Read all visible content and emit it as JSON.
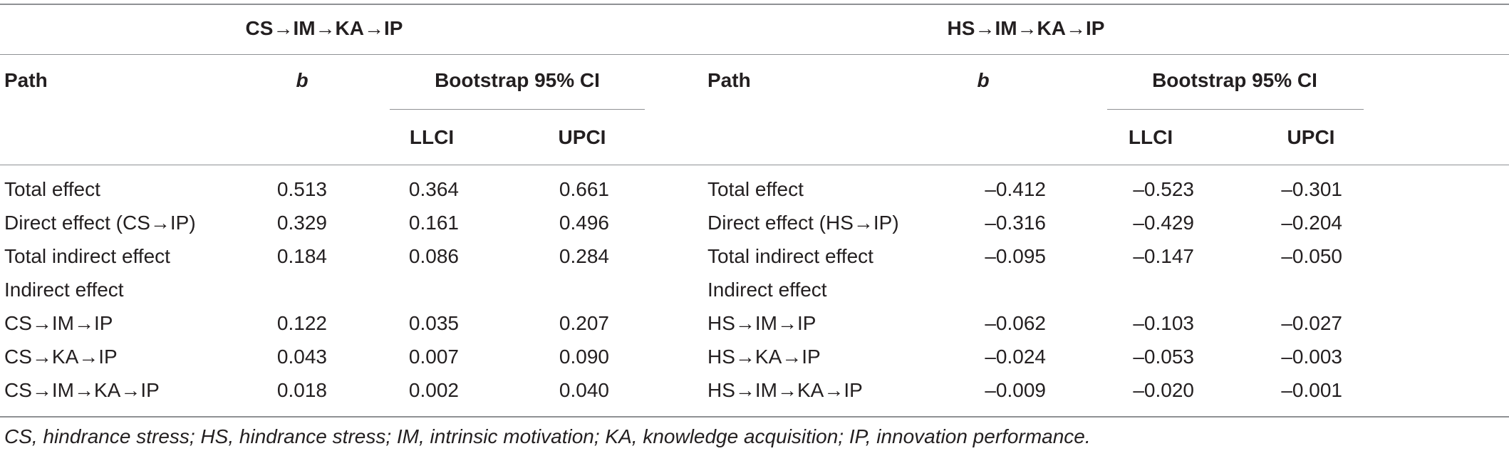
{
  "tables": [
    {
      "title": "CS→IM→KA→IP",
      "headers": {
        "path": "Path",
        "b": "b",
        "ci": "Bootstrap 95% CI",
        "llci": "LLCI",
        "upci": "UPCI"
      },
      "rows": [
        {
          "path": "Total effect",
          "b": "0.513",
          "llci": "0.364",
          "upci": "0.661"
        },
        {
          "path": "Direct effect (CS→IP)",
          "b": "0.329",
          "llci": "0.161",
          "upci": "0.496"
        },
        {
          "path": "Total indirect effect",
          "b": "0.184",
          "llci": "0.086",
          "upci": "0.284"
        },
        {
          "path": "Indirect effect",
          "b": "",
          "llci": "",
          "upci": ""
        },
        {
          "path": "CS→IM→IP",
          "b": "0.122",
          "llci": "0.035",
          "upci": "0.207"
        },
        {
          "path": "CS→KA→IP",
          "b": "0.043",
          "llci": "0.007",
          "upci": "0.090"
        },
        {
          "path": "CS→IM→KA→IP",
          "b": "0.018",
          "llci": "0.002",
          "upci": "0.040"
        }
      ]
    },
    {
      "title": "HS→IM→KA→IP",
      "headers": {
        "path": "Path",
        "b": "b",
        "ci": "Bootstrap 95% CI",
        "llci": "LLCI",
        "upci": "UPCI"
      },
      "rows": [
        {
          "path": "Total effect",
          "b": "–0.412",
          "llci": "–0.523",
          "upci": "–0.301"
        },
        {
          "path": "Direct effect (HS→IP)",
          "b": "–0.316",
          "llci": "–0.429",
          "upci": "–0.204"
        },
        {
          "path": "Total indirect effect",
          "b": "–0.095",
          "llci": "–0.147",
          "upci": "–0.050"
        },
        {
          "path": "Indirect effect",
          "b": "",
          "llci": "",
          "upci": ""
        },
        {
          "path": "HS→IM→IP",
          "b": "–0.062",
          "llci": "–0.103",
          "upci": "–0.027"
        },
        {
          "path": "HS→KA→IP",
          "b": "–0.024",
          "llci": "–0.053",
          "upci": "–0.003"
        },
        {
          "path": "HS→IM→KA→IP",
          "b": "–0.009",
          "llci": "–0.020",
          "upci": "–0.001"
        }
      ]
    }
  ],
  "footnote": "CS, hindrance stress; HS, hindrance stress; IM, intrinsic motivation; KA, knowledge acquisition; IP, innovation performance."
}
